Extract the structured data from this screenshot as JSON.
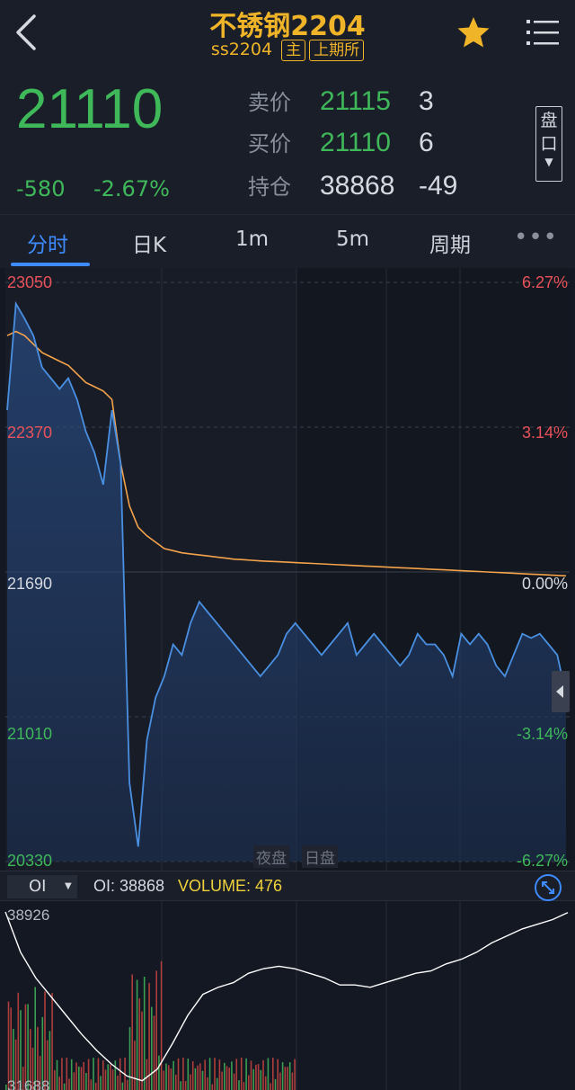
{
  "header": {
    "title": "不锈钢2204",
    "code": "ss2204",
    "tag_main": "主",
    "tag_exchange": "上期所"
  },
  "quote": {
    "last_price": "21110",
    "change": "-580",
    "change_pct": "-2.67%",
    "ask_label": "卖价",
    "ask_price": "21115",
    "ask_vol": "3",
    "bid_label": "买价",
    "bid_price": "21110",
    "bid_vol": "6",
    "oi_label": "持仓",
    "oi_value": "38868",
    "oi_change": "-49",
    "pankou_1": "盘",
    "pankou_2": "口"
  },
  "tabs": [
    {
      "label": "分时",
      "active": true
    },
    {
      "label": "日K",
      "active": false
    },
    {
      "label": "1m",
      "active": false
    },
    {
      "label": "5m",
      "active": false
    },
    {
      "label": "周期",
      "active": false
    }
  ],
  "more_label": "•••",
  "chart_data": {
    "type": "line",
    "y_left_ticks": [
      "23050",
      "22370",
      "21690",
      "21010",
      "20330"
    ],
    "y_right_ticks": [
      "6.27%",
      "3.14%",
      "0.00%",
      "-3.14%",
      "-6.27%"
    ],
    "ylim": [
      20330,
      23050
    ],
    "prev_close": 21690,
    "sessions": [
      "夜盘",
      "日盘"
    ],
    "series": [
      {
        "role": "price",
        "color": "#4a90e2",
        "values": [
          22450,
          22950,
          22880,
          22800,
          22650,
          22600,
          22550,
          22600,
          22500,
          22350,
          22250,
          22100,
          22450,
          22200,
          20700,
          20400,
          20900,
          21100,
          21200,
          21350,
          21300,
          21450,
          21550,
          21500,
          21450,
          21400,
          21350,
          21300,
          21250,
          21200,
          21250,
          21300,
          21400,
          21450,
          21400,
          21350,
          21300,
          21350,
          21400,
          21450,
          21300,
          21350,
          21400,
          21350,
          21300,
          21250,
          21300,
          21400,
          21350,
          21350,
          21300,
          21200,
          21400,
          21350,
          21400,
          21350,
          21250,
          21200,
          21300,
          21400,
          21380,
          21400,
          21350,
          21300,
          21110
        ]
      },
      {
        "role": "average",
        "color": "#f5a34a",
        "values": [
          22800,
          22820,
          22800,
          22760,
          22720,
          22700,
          22680,
          22660,
          22620,
          22580,
          22560,
          22540,
          22500,
          22200,
          22000,
          21900,
          21860,
          21830,
          21800,
          21790,
          21780,
          21775,
          21770,
          21765,
          21760,
          21755,
          21750,
          21748,
          21745,
          21742,
          21740,
          21738,
          21736,
          21734,
          21732,
          21730,
          21728,
          21726,
          21724,
          21722,
          21720,
          21718,
          21716,
          21714,
          21712,
          21710,
          21708,
          21706,
          21704,
          21702,
          21700,
          21698,
          21696,
          21694,
          21692,
          21690,
          21688,
          21686,
          21684,
          21682,
          21680,
          21678,
          21676,
          21674,
          21672
        ]
      }
    ]
  },
  "oi_bar": {
    "selector": "OI",
    "oi_text": "OI: 38868",
    "volume_text": "VOLUME: 476"
  },
  "oi_chart": {
    "top_label": "38926",
    "bottom_label": "31688",
    "oi_values": [
      38926,
      37200,
      36100,
      35300,
      34500,
      33700,
      33000,
      32400,
      31900,
      31700,
      32200,
      33300,
      34500,
      35400,
      35700,
      35900,
      36300,
      36500,
      36600,
      36500,
      36300,
      36100,
      35800,
      35800,
      35700,
      35900,
      36100,
      36300,
      36400,
      36700,
      36900,
      37200,
      37600,
      37900,
      38200,
      38400,
      38600,
      38900
    ],
    "ylim": [
      31688,
      38926
    ]
  },
  "colors": {
    "bg": "#141823",
    "up": "#e9525a",
    "down": "#3fb85a",
    "accent": "#3d8bff",
    "title": "#f0b429"
  }
}
